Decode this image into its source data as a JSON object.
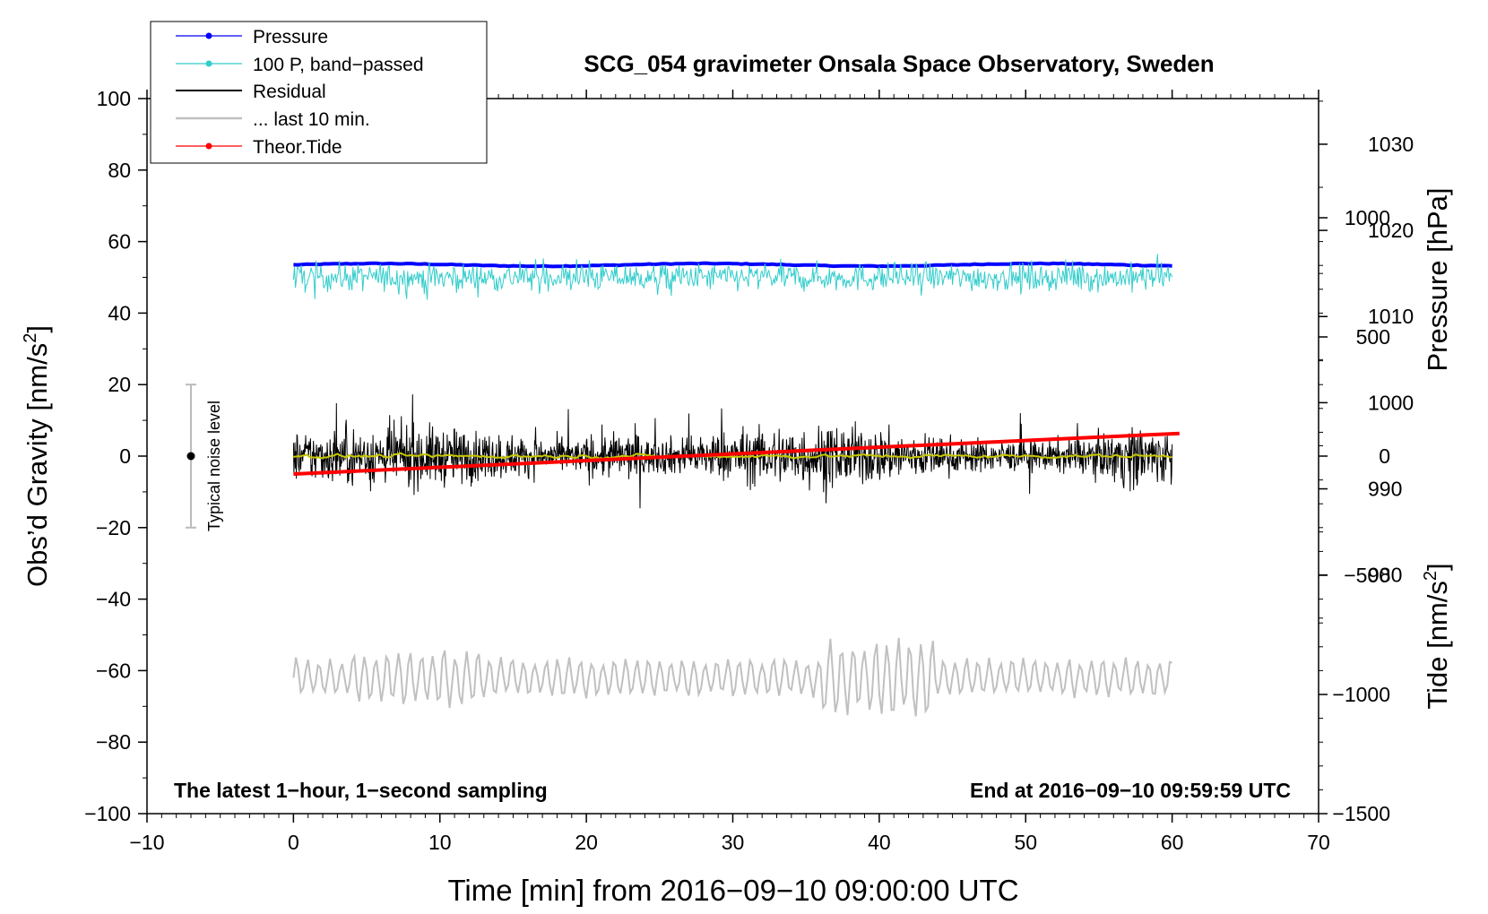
{
  "chart_data": {
    "type": "line",
    "title": "SCG_054 gravimeter Onsala Space Observatory, Sweden",
    "xlabel": "Time [min] from 2016−09−10 09:00:00 UTC",
    "ylabel_left_main": "Obs’d Gravity [nm/s",
    "ylabel_left_sup": "2",
    "ylabel_left_close": "]",
    "ylabel_right_pressure": "Pressure [hPa]",
    "ylabel_right_tide_main": "Tide [nm/s",
    "ylabel_right_tide_sup": "2",
    "ylabel_right_tide_close": "]",
    "note_left": "The latest 1−hour, 1−second sampling",
    "note_right": "End at 2016−09−10 09:59:59 UTC",
    "noise_label": "Typical noise level",
    "xlim": [
      -10,
      70
    ],
    "ylim": [
      -100,
      100
    ],
    "pressure_lim": [
      952.3,
      1035.3
    ],
    "tide_lim": [
      -1500,
      1500
    ],
    "x_ticks": [
      -10,
      0,
      10,
      20,
      30,
      40,
      50,
      60,
      70
    ],
    "x_tick_labels": [
      "−10",
      "0",
      "10",
      "20",
      "30",
      "40",
      "50",
      "60",
      "70"
    ],
    "y_ticks": [
      -100,
      -80,
      -60,
      -40,
      -20,
      0,
      20,
      40,
      60,
      80,
      100
    ],
    "y_tick_labels": [
      "−100",
      "−80",
      "−60",
      "−40",
      "−20",
      "0",
      "20",
      "40",
      "60",
      "80",
      "100"
    ],
    "pressure_ticks": [
      980,
      990,
      1000,
      1010,
      1020,
      1030
    ],
    "pressure_tick_labels": [
      "980",
      "990",
      "1000",
      "1010",
      "1020",
      "1030"
    ],
    "tide_ticks": [
      -1500,
      -1000,
      -500,
      0,
      500,
      1000
    ],
    "tide_tick_labels": [
      "−1500",
      "−1000",
      "−500",
      "0",
      "500",
      "1000"
    ],
    "grid": false,
    "legend_position": "top-left",
    "legend": [
      "Pressure",
      "100 P, band−passed",
      "Residual",
      "... last 10 min.",
      "Theor.Tide"
    ],
    "noise_level": {
      "x": -7,
      "center": 0,
      "half_range": 20
    },
    "series": [
      {
        "name": "Pressure",
        "axis": "pressure",
        "color": "#0000ff",
        "x_range": [
          0,
          60
        ],
        "approx_value_hPa": 1016
      },
      {
        "name": "100 P, band−passed",
        "axis": "gravity",
        "color": "#33cccc",
        "x_range": [
          0,
          60
        ],
        "approx_level": 50,
        "approx_amplitude": 5
      },
      {
        "name": "Residual",
        "axis": "gravity",
        "color": "#000000",
        "x_range": [
          0,
          60
        ],
        "approx_level": 0,
        "approx_amplitude": 9
      },
      {
        "axis": "gravity",
        "color": "#c8c800",
        "x_range": [
          0,
          60
        ],
        "approx_level": 0,
        "approx_amplitude": 1.5
      },
      {
        "name": "... last 10 min.",
        "axis": "gravity",
        "color": "#c0c0c0",
        "x_range": [
          0,
          60
        ],
        "approx_level": -62,
        "approx_amplitude": 10
      },
      {
        "name": "Theor.Tide",
        "axis": "tide",
        "color": "#ff0000",
        "x": [
          0,
          60.5
        ],
        "values": [
          -75,
          95
        ]
      }
    ]
  }
}
